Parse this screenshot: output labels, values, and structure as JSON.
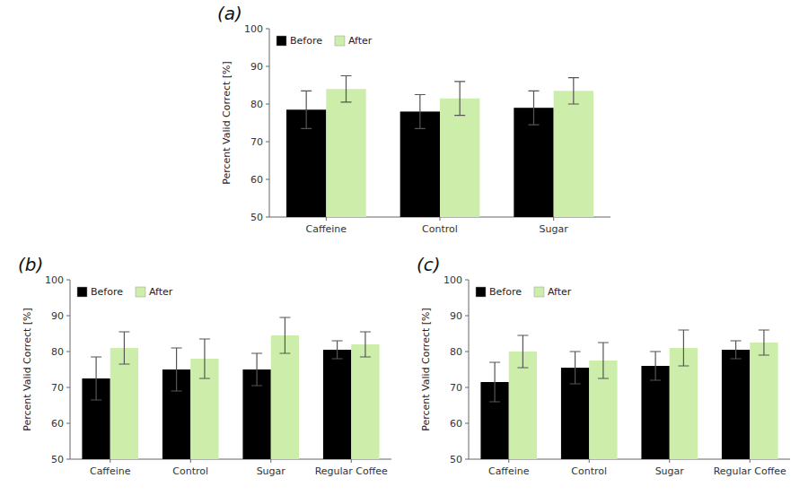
{
  "chart_data": [
    {
      "type": "bar",
      "title": "(a)",
      "categories": [
        "Caffeine",
        "Control",
        "Sugar"
      ],
      "series": [
        {
          "name": "Before",
          "color": "#000000",
          "values": [
            78.5,
            78.0,
            79.0
          ],
          "errors": [
            5.0,
            4.5,
            4.5
          ]
        },
        {
          "name": "After",
          "color": "#cceeaa",
          "values": [
            84.0,
            81.5,
            83.5
          ],
          "errors": [
            3.5,
            4.5,
            3.5
          ]
        }
      ],
      "y_label": "Percent Valid Correct [%]",
      "ylim": [
        50,
        100
      ],
      "yticks": [
        50,
        60,
        70,
        80,
        90,
        100
      ],
      "legend": "upper left"
    },
    {
      "type": "bar",
      "title": "(b)",
      "categories": [
        "Caffeine",
        "Control",
        "Sugar",
        "Regular Coffee"
      ],
      "series": [
        {
          "name": "Before",
          "color": "#000000",
          "values": [
            72.5,
            75.0,
            75.0,
            80.5
          ],
          "errors": [
            6.0,
            6.0,
            4.5,
            2.5
          ]
        },
        {
          "name": "After",
          "color": "#cceeaa",
          "values": [
            81.0,
            78.0,
            84.5,
            82.0
          ],
          "errors": [
            4.5,
            5.5,
            5.0,
            3.5
          ]
        }
      ],
      "y_label": "Percent Valid Correct [%]",
      "ylim": [
        50,
        100
      ],
      "yticks": [
        50,
        60,
        70,
        80,
        90,
        100
      ],
      "legend": "upper left"
    },
    {
      "type": "bar",
      "title": "(c)",
      "categories": [
        "Caffeine",
        "Control",
        "Sugar",
        "Regular Coffee"
      ],
      "series": [
        {
          "name": "Before",
          "color": "#000000",
          "values": [
            71.5,
            75.5,
            76.0,
            80.5
          ],
          "errors": [
            5.5,
            4.5,
            4.0,
            2.5
          ]
        },
        {
          "name": "After",
          "color": "#cceeaa",
          "values": [
            80.0,
            77.5,
            81.0,
            82.5
          ],
          "errors": [
            4.5,
            5.0,
            5.0,
            3.5
          ]
        }
      ],
      "y_label": "Percent Valid Correct [%]",
      "ylim": [
        50,
        100
      ],
      "yticks": [
        50,
        60,
        70,
        80,
        90,
        100
      ],
      "legend": "upper left"
    }
  ]
}
